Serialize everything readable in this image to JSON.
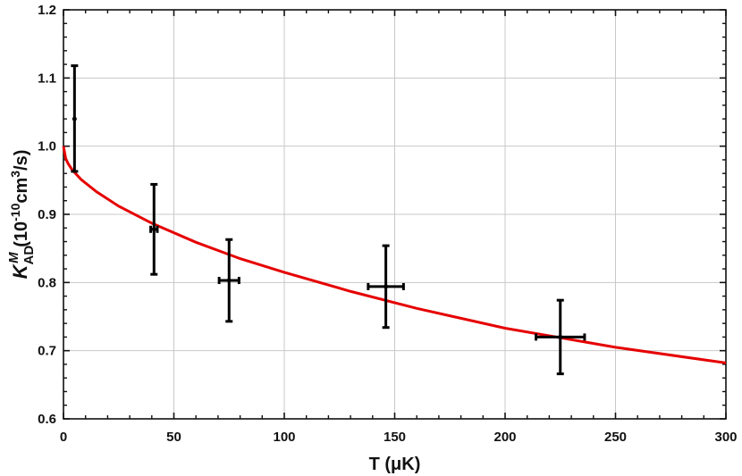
{
  "chart_data": {
    "type": "scatter",
    "title": "",
    "xlabel": "T (μK)",
    "ylabel": "K_AD^M (10^-10 cm^3/s)",
    "xlim": [
      0,
      300
    ],
    "ylim": [
      0.6,
      1.2
    ],
    "x_ticks": [
      "0",
      "50",
      "100",
      "150",
      "200",
      "250",
      "300"
    ],
    "y_ticks": [
      "0.6",
      "0.7",
      "0.8",
      "0.9",
      "1.0",
      "1.1",
      "1.2"
    ],
    "grid": true,
    "colors": {
      "points": "#000000",
      "fit": "#e60000",
      "grid": "#c8c8c8"
    },
    "series": [
      {
        "kind": "errorbar",
        "points": [
          {
            "x": 5,
            "y": 1.04,
            "xerr": 0.0,
            "yerr_low": 0.077,
            "yerr_high": 0.078
          },
          {
            "x": 41,
            "y": 0.878,
            "xerr": 1.5,
            "yerr_low": 0.066,
            "yerr_high": 0.066
          },
          {
            "x": 75,
            "y": 0.803,
            "xerr": 4.5,
            "yerr_low": 0.06,
            "yerr_high": 0.06
          },
          {
            "x": 146,
            "y": 0.794,
            "xerr": 8.0,
            "yerr_low": 0.06,
            "yerr_high": 0.06
          },
          {
            "x": 225,
            "y": 0.72,
            "xerr": 11.0,
            "yerr_low": 0.054,
            "yerr_high": 0.054
          }
        ]
      },
      {
        "kind": "line",
        "x": [
          0,
          1,
          2,
          4,
          8,
          15,
          25,
          40,
          60,
          80,
          100,
          130,
          160,
          200,
          250,
          300
        ],
        "y": [
          1.0,
          0.982,
          0.975,
          0.965,
          0.951,
          0.933,
          0.912,
          0.887,
          0.859,
          0.835,
          0.815,
          0.787,
          0.762,
          0.733,
          0.705,
          0.682
        ]
      }
    ]
  }
}
